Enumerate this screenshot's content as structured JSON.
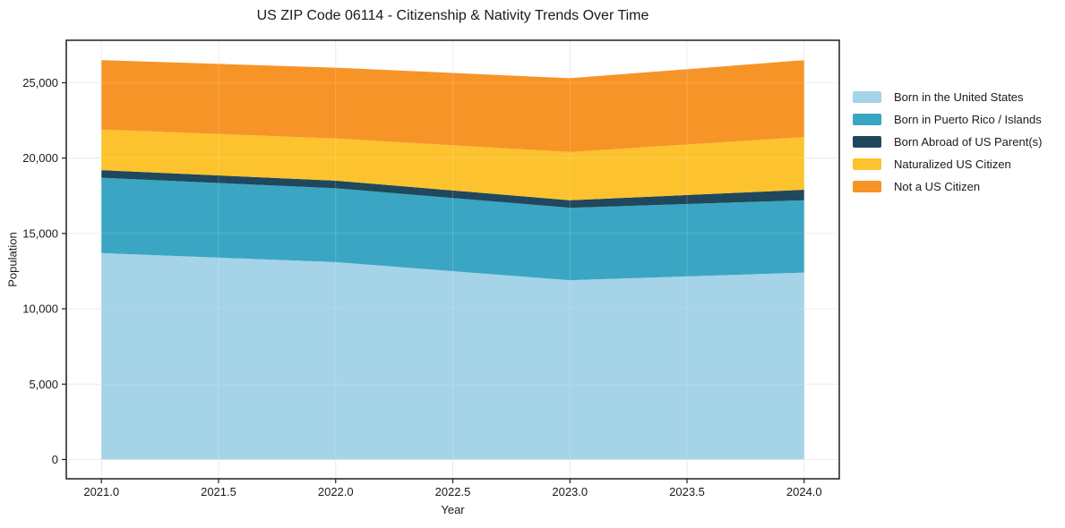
{
  "figure": {
    "background": "#ffffff",
    "frame_color": "#1f1f1f",
    "gridline_color": "#eaeaea",
    "text_color": "#1a1a1a"
  },
  "chart_data": {
    "type": "area",
    "stacked": true,
    "title": "US ZIP Code 06114 - Citizenship & Nativity Trends Over Time",
    "xlabel": "Year",
    "ylabel": "Population",
    "x": [
      2021.0,
      2022.0,
      2023.0,
      2024.0
    ],
    "series": [
      {
        "name": "Born in the United States",
        "color": "#a5d3e8",
        "values": [
          13700,
          13100,
          11900,
          12400
        ]
      },
      {
        "name": "Born in Puerto Rico / Islands",
        "color": "#3aa6c3",
        "values": [
          5000,
          4900,
          4800,
          4800
        ]
      },
      {
        "name": "Born Abroad of US Parent(s)",
        "color": "#20485c",
        "values": [
          500,
          500,
          500,
          700
        ]
      },
      {
        "name": "Naturalized US Citizen",
        "color": "#fcc32e",
        "values": [
          2700,
          2800,
          3200,
          3500
        ]
      },
      {
        "name": "Not a US Citizen",
        "color": "#f79428",
        "values": [
          4600,
          4700,
          4900,
          5100
        ]
      }
    ],
    "totals": [
      26500,
      26000,
      25300,
      26500
    ],
    "xlim": [
      2020.85,
      2024.15
    ],
    "ylim": [
      -1280,
      27820
    ],
    "xticks": {
      "values": [
        2021.0,
        2021.5,
        2022.0,
        2022.5,
        2023.0,
        2023.5,
        2024.0
      ],
      "labels": [
        "2021.0",
        "2021.5",
        "2022.0",
        "2022.5",
        "2023.0",
        "2023.5",
        "2024.0"
      ]
    },
    "yticks": {
      "values": [
        0,
        5000,
        10000,
        15000,
        20000,
        25000
      ],
      "labels": [
        "0",
        "5,000",
        "10,000",
        "15,000",
        "20,000",
        "25,000"
      ]
    },
    "grid": true,
    "legend_position": "right of plot, no border"
  }
}
